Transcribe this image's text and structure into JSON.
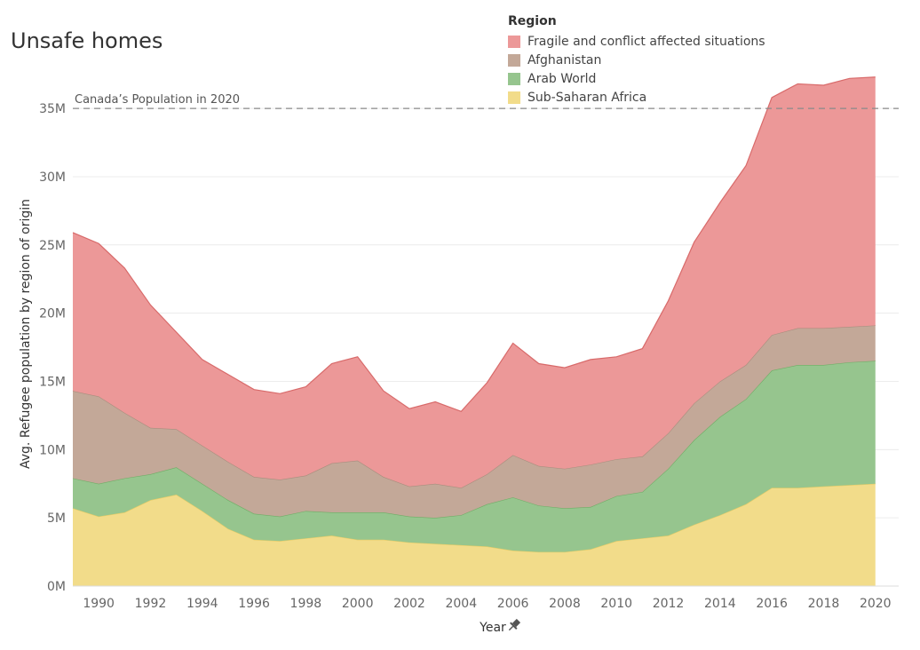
{
  "chart_data": {
    "type": "area",
    "stacked": true,
    "title": "Unsafe homes",
    "xlabel": "Year",
    "xlabel_icon": "pin-icon",
    "ylabel": "Avg. Refugee population by region of origin",
    "legend_title": "Region",
    "legend_position": "top-right",
    "x": [
      1989,
      1990,
      1991,
      1992,
      1993,
      1994,
      1995,
      1996,
      1997,
      1998,
      1999,
      2000,
      2001,
      2002,
      2003,
      2004,
      2005,
      2006,
      2007,
      2008,
      2009,
      2010,
      2011,
      2012,
      2013,
      2014,
      2015,
      2016,
      2017,
      2018,
      2019,
      2020
    ],
    "xlim": [
      1989,
      2020.9
    ],
    "xticks": [
      1990,
      1992,
      1994,
      1996,
      1998,
      2000,
      2002,
      2004,
      2006,
      2008,
      2010,
      2012,
      2014,
      2016,
      2018,
      2020
    ],
    "ylim": [
      0,
      38
    ],
    "yticks": [
      0,
      5,
      10,
      15,
      20,
      25,
      30,
      35
    ],
    "ytick_labels": [
      "0M",
      "5M",
      "10M",
      "15M",
      "20M",
      "25M",
      "30M",
      "35M"
    ],
    "y_unit": "millions",
    "grid": true,
    "reference_line": {
      "value": 35,
      "label": "Canada’s Population in 2020",
      "style": "dashed"
    },
    "series": [
      {
        "name": "Sub-Saharan Africa",
        "color": "#f2dc8a",
        "values": [
          5.7,
          5.1,
          5.4,
          6.3,
          6.7,
          5.5,
          4.2,
          3.4,
          3.3,
          3.5,
          3.7,
          3.4,
          3.4,
          3.2,
          3.1,
          3.0,
          2.9,
          2.6,
          2.5,
          2.5,
          2.7,
          3.3,
          3.5,
          3.7,
          4.5,
          5.2,
          6.0,
          7.2,
          7.2,
          7.3,
          7.4,
          7.5
        ]
      },
      {
        "name": "Arab World",
        "color": "#96c58e",
        "values": [
          2.2,
          2.4,
          2.5,
          1.9,
          2.0,
          2.0,
          2.1,
          1.9,
          1.8,
          2.0,
          1.7,
          2.0,
          2.0,
          1.9,
          1.9,
          2.2,
          3.1,
          3.9,
          3.4,
          3.2,
          3.1,
          3.3,
          3.4,
          4.9,
          6.2,
          7.2,
          7.7,
          8.6,
          9.0,
          8.9,
          9.0,
          9.0
        ]
      },
      {
        "name": "Afghanistan",
        "color": "#c3a898",
        "values": [
          6.4,
          6.4,
          4.8,
          3.4,
          2.8,
          2.8,
          2.8,
          2.7,
          2.7,
          2.6,
          3.6,
          3.8,
          2.6,
          2.2,
          2.5,
          2.0,
          2.2,
          3.1,
          2.9,
          2.9,
          3.1,
          2.7,
          2.6,
          2.6,
          2.7,
          2.6,
          2.5,
          2.6,
          2.7,
          2.7,
          2.6,
          2.6
        ]
      },
      {
        "name": "Fragile and conflict affected situations",
        "color": "#ec9898",
        "values": [
          11.6,
          11.2,
          10.6,
          9.0,
          7.1,
          6.3,
          6.4,
          6.4,
          6.3,
          6.5,
          7.3,
          7.6,
          6.3,
          5.7,
          6.0,
          5.6,
          6.7,
          8.2,
          7.5,
          7.4,
          7.7,
          7.5,
          7.9,
          9.7,
          11.8,
          13.1,
          14.6,
          17.4,
          17.9,
          17.8,
          18.2,
          18.2
        ]
      }
    ]
  }
}
